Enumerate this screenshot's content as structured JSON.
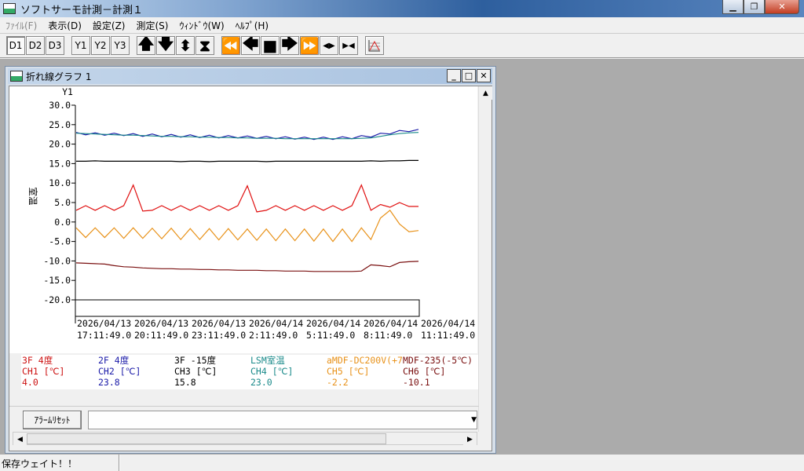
{
  "window": {
    "title": "ソフトサーモ計測－計測１",
    "min": "▁",
    "max": "❐",
    "close": "✕"
  },
  "menu": [
    {
      "label": "ﾌｧｲﾙ(F)",
      "disabled": true
    },
    {
      "label": "表示(D)"
    },
    {
      "label": "設定(Z)"
    },
    {
      "label": "測定(S)"
    },
    {
      "label": "ｳｨﾝﾄﾞｳ(W)"
    },
    {
      "label": "ﾍﾙﾌﾟ(H)"
    }
  ],
  "toolbar": {
    "d1": "D1",
    "d2": "D2",
    "d3": "D3",
    "y1": "Y1",
    "y2": "Y2",
    "y3": "Y3",
    "up": "🡅",
    "down": "🡇",
    "expand": "⬍",
    "shrink": "⧗",
    "first": "⏪",
    "prev": "🡄",
    "stop": "■",
    "next": "🡆",
    "last": "⏩",
    "spread": "◀▶",
    "narrow": "▶◀"
  },
  "child": {
    "title": "折れ線グラフ 1",
    "min": "_",
    "max": "□",
    "close": "✕"
  },
  "chart_data": {
    "type": "line",
    "ylabel": "室温",
    "axis_name": "Y1",
    "ylim": [
      -20,
      30
    ],
    "yticks": [
      "30.0",
      "25.0",
      "20.0",
      "15.0",
      "10.0",
      "5.0",
      "0.0",
      "-5.0",
      "-10.0",
      "-15.0",
      "-20.0"
    ],
    "xticks": [
      [
        "2026/04/13",
        "17:11:49.0"
      ],
      [
        "2026/04/13",
        "20:11:49.0"
      ],
      [
        "2026/04/13",
        "23:11:49.0"
      ],
      [
        "2026/04/14",
        "2:11:49.0"
      ],
      [
        "2026/04/14",
        "5:11:49.0"
      ],
      [
        "2026/04/14",
        "8:11:49.0"
      ],
      [
        "2026/04/14",
        "11:11:49.0"
      ]
    ],
    "x": [
      "04/13 17:11",
      "17:41",
      "18:11",
      "18:41",
      "19:11",
      "19:41",
      "20:11",
      "20:41",
      "21:11",
      "21:41",
      "22:11",
      "22:41",
      "23:11",
      "23:41",
      "04/14 0:11",
      "0:41",
      "1:11",
      "1:41",
      "2:11",
      "2:41",
      "3:11",
      "3:41",
      "4:11",
      "4:41",
      "5:11",
      "5:41",
      "6:11",
      "6:41",
      "7:11",
      "7:41",
      "8:11",
      "8:41",
      "9:11",
      "9:41",
      "10:11",
      "10:41",
      "11:11"
    ],
    "series": [
      {
        "name": "3F 4度",
        "color": "#e01010",
        "values": [
          3.0,
          4.2,
          3.0,
          4.2,
          3.0,
          4.2,
          9.5,
          2.8,
          3.0,
          4.2,
          3.0,
          4.2,
          3.0,
          4.2,
          3.0,
          4.2,
          3.0,
          4.2,
          9.3,
          2.6,
          3.0,
          4.2,
          3.0,
          4.2,
          3.0,
          4.2,
          3.0,
          4.2,
          3.0,
          4.2,
          9.5,
          3.0,
          4.5,
          3.8,
          5.0,
          4.0,
          4.0
        ]
      },
      {
        "name": "2F 4度",
        "color": "#1a1aa8",
        "values": [
          23.0,
          22.4,
          22.9,
          22.3,
          22.8,
          22.2,
          22.7,
          22.0,
          22.6,
          21.9,
          22.5,
          21.8,
          22.4,
          21.7,
          22.3,
          21.6,
          22.2,
          21.6,
          22.1,
          21.5,
          22.0,
          21.4,
          21.9,
          21.3,
          21.8,
          21.2,
          21.8,
          21.2,
          21.9,
          21.4,
          22.2,
          21.8,
          22.8,
          22.6,
          23.5,
          23.2,
          23.8
        ]
      },
      {
        "name": "3F -15度",
        "color": "#000000",
        "values": [
          15.6,
          15.6,
          15.7,
          15.6,
          15.6,
          15.6,
          15.6,
          15.6,
          15.6,
          15.6,
          15.6,
          15.5,
          15.6,
          15.6,
          15.5,
          15.6,
          15.6,
          15.6,
          15.6,
          15.6,
          15.5,
          15.6,
          15.6,
          15.6,
          15.6,
          15.6,
          15.6,
          15.6,
          15.6,
          15.6,
          15.6,
          15.7,
          15.6,
          15.7,
          15.7,
          15.8,
          15.8
        ]
      },
      {
        "name": "LSM室温",
        "color": "#1a8a8a",
        "values": [
          22.8,
          22.7,
          22.6,
          22.5,
          22.4,
          22.3,
          22.3,
          22.2,
          22.1,
          22.0,
          22.0,
          21.9,
          21.9,
          21.8,
          21.8,
          21.7,
          21.7,
          21.6,
          21.6,
          21.5,
          21.5,
          21.5,
          21.4,
          21.4,
          21.4,
          21.4,
          21.4,
          21.4,
          21.4,
          21.4,
          21.5,
          21.6,
          22.0,
          22.4,
          22.7,
          22.9,
          23.0
        ]
      },
      {
        "name": "aMDF-DC200V(+7",
        "color": "#e8921a",
        "values": [
          -1.5,
          -4.0,
          -1.5,
          -4.0,
          -1.5,
          -4.2,
          -1.5,
          -4.2,
          -1.6,
          -4.3,
          -1.6,
          -4.5,
          -1.7,
          -4.5,
          -1.7,
          -4.6,
          -1.7,
          -4.6,
          -1.8,
          -4.7,
          -1.8,
          -4.8,
          -1.8,
          -4.8,
          -1.8,
          -4.9,
          -1.8,
          -5.0,
          -1.8,
          -5.0,
          -1.5,
          -4.5,
          1.0,
          3.0,
          -0.5,
          -2.5,
          -2.2
        ]
      },
      {
        "name": "MDF-235(-5℃)",
        "color": "#7a1010",
        "values": [
          -10.5,
          -10.6,
          -10.7,
          -10.8,
          -11.2,
          -11.5,
          -11.6,
          -11.8,
          -11.9,
          -12.0,
          -12.0,
          -12.1,
          -12.1,
          -12.2,
          -12.2,
          -12.3,
          -12.3,
          -12.4,
          -12.4,
          -12.4,
          -12.5,
          -12.5,
          -12.6,
          -12.6,
          -12.6,
          -12.7,
          -12.7,
          -12.7,
          -12.7,
          -12.7,
          -12.6,
          -11.0,
          -11.2,
          -11.5,
          -10.4,
          -10.2,
          -10.1
        ]
      }
    ]
  },
  "legend": [
    {
      "name": "3F 4度",
      "ch": "CH1 [℃]",
      "value": "4.0",
      "color": "#cc1010"
    },
    {
      "name": "2F 4度",
      "ch": "CH2 [℃]",
      "value": "23.8",
      "color": "#1a1aa8"
    },
    {
      "name": "3F -15度",
      "ch": "CH3 [℃]",
      "value": "15.8",
      "color": "#000000"
    },
    {
      "name": "LSM室温",
      "ch": "CH4 [℃]",
      "value": "23.0",
      "color": "#1a8a8a"
    },
    {
      "name": "aMDF-DC200V(+7",
      "ch": "CH5 [℃]",
      "value": "-2.2",
      "color": "#e8921a"
    },
    {
      "name": "MDF-235(-5℃)",
      "ch": "CH6 [℃]",
      "value": "-10.1",
      "color": "#7a1010"
    }
  ],
  "alarm": {
    "reset_label": "ｱﾗｰﾑﾘｾｯﾄ",
    "value": "",
    "dropdown": "▼"
  },
  "status": {
    "text": "保存ウェイト！！"
  }
}
